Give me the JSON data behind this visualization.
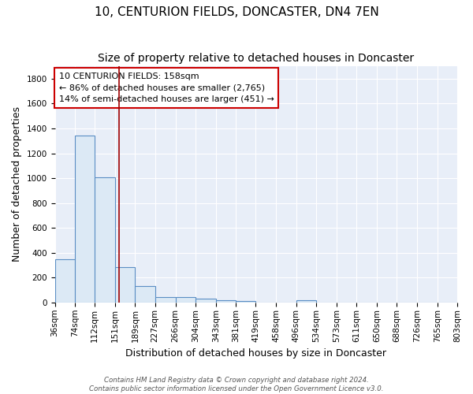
{
  "title": "10, CENTURION FIELDS, DONCASTER, DN4 7EN",
  "subtitle": "Size of property relative to detached houses in Doncaster",
  "xlabel": "Distribution of detached houses by size in Doncaster",
  "ylabel": "Number of detached properties",
  "footer_line1": "Contains HM Land Registry data © Crown copyright and database right 2024.",
  "footer_line2": "Contains public sector information licensed under the Open Government Licence v3.0.",
  "bins": [
    36,
    74,
    112,
    151,
    189,
    227,
    266,
    304,
    343,
    381,
    419,
    458,
    496,
    534,
    573,
    611,
    650,
    688,
    726,
    765,
    803
  ],
  "bin_labels": [
    "36sqm",
    "74sqm",
    "112sqm",
    "151sqm",
    "189sqm",
    "227sqm",
    "266sqm",
    "304sqm",
    "343sqm",
    "381sqm",
    "419sqm",
    "458sqm",
    "496sqm",
    "534sqm",
    "573sqm",
    "611sqm",
    "650sqm",
    "688sqm",
    "726sqm",
    "765sqm",
    "803sqm"
  ],
  "counts": [
    350,
    1340,
    1010,
    285,
    130,
    42,
    42,
    30,
    18,
    15,
    0,
    0,
    18,
    0,
    0,
    0,
    0,
    0,
    0,
    0
  ],
  "bar_face_color": "#dce9f5",
  "bar_edge_color": "#5b8ec4",
  "property_size": 158,
  "vline_color": "#a00000",
  "annotation_line1": "10 CENTURION FIELDS: 158sqm",
  "annotation_line2": "← 86% of detached houses are smaller (2,765)",
  "annotation_line3": "14% of semi-detached houses are larger (451) →",
  "annotation_box_edgecolor": "#cc0000",
  "annotation_face_color": "white",
  "ylim": [
    0,
    1900
  ],
  "yticks": [
    0,
    200,
    400,
    600,
    800,
    1000,
    1200,
    1400,
    1600,
    1800
  ],
  "background_color": "#e8eef8",
  "grid_color": "white",
  "title_fontsize": 11,
  "subtitle_fontsize": 10,
  "axis_label_fontsize": 9,
  "tick_fontsize": 7.5,
  "annotation_fontsize": 8,
  "ylabel_fontsize": 9
}
